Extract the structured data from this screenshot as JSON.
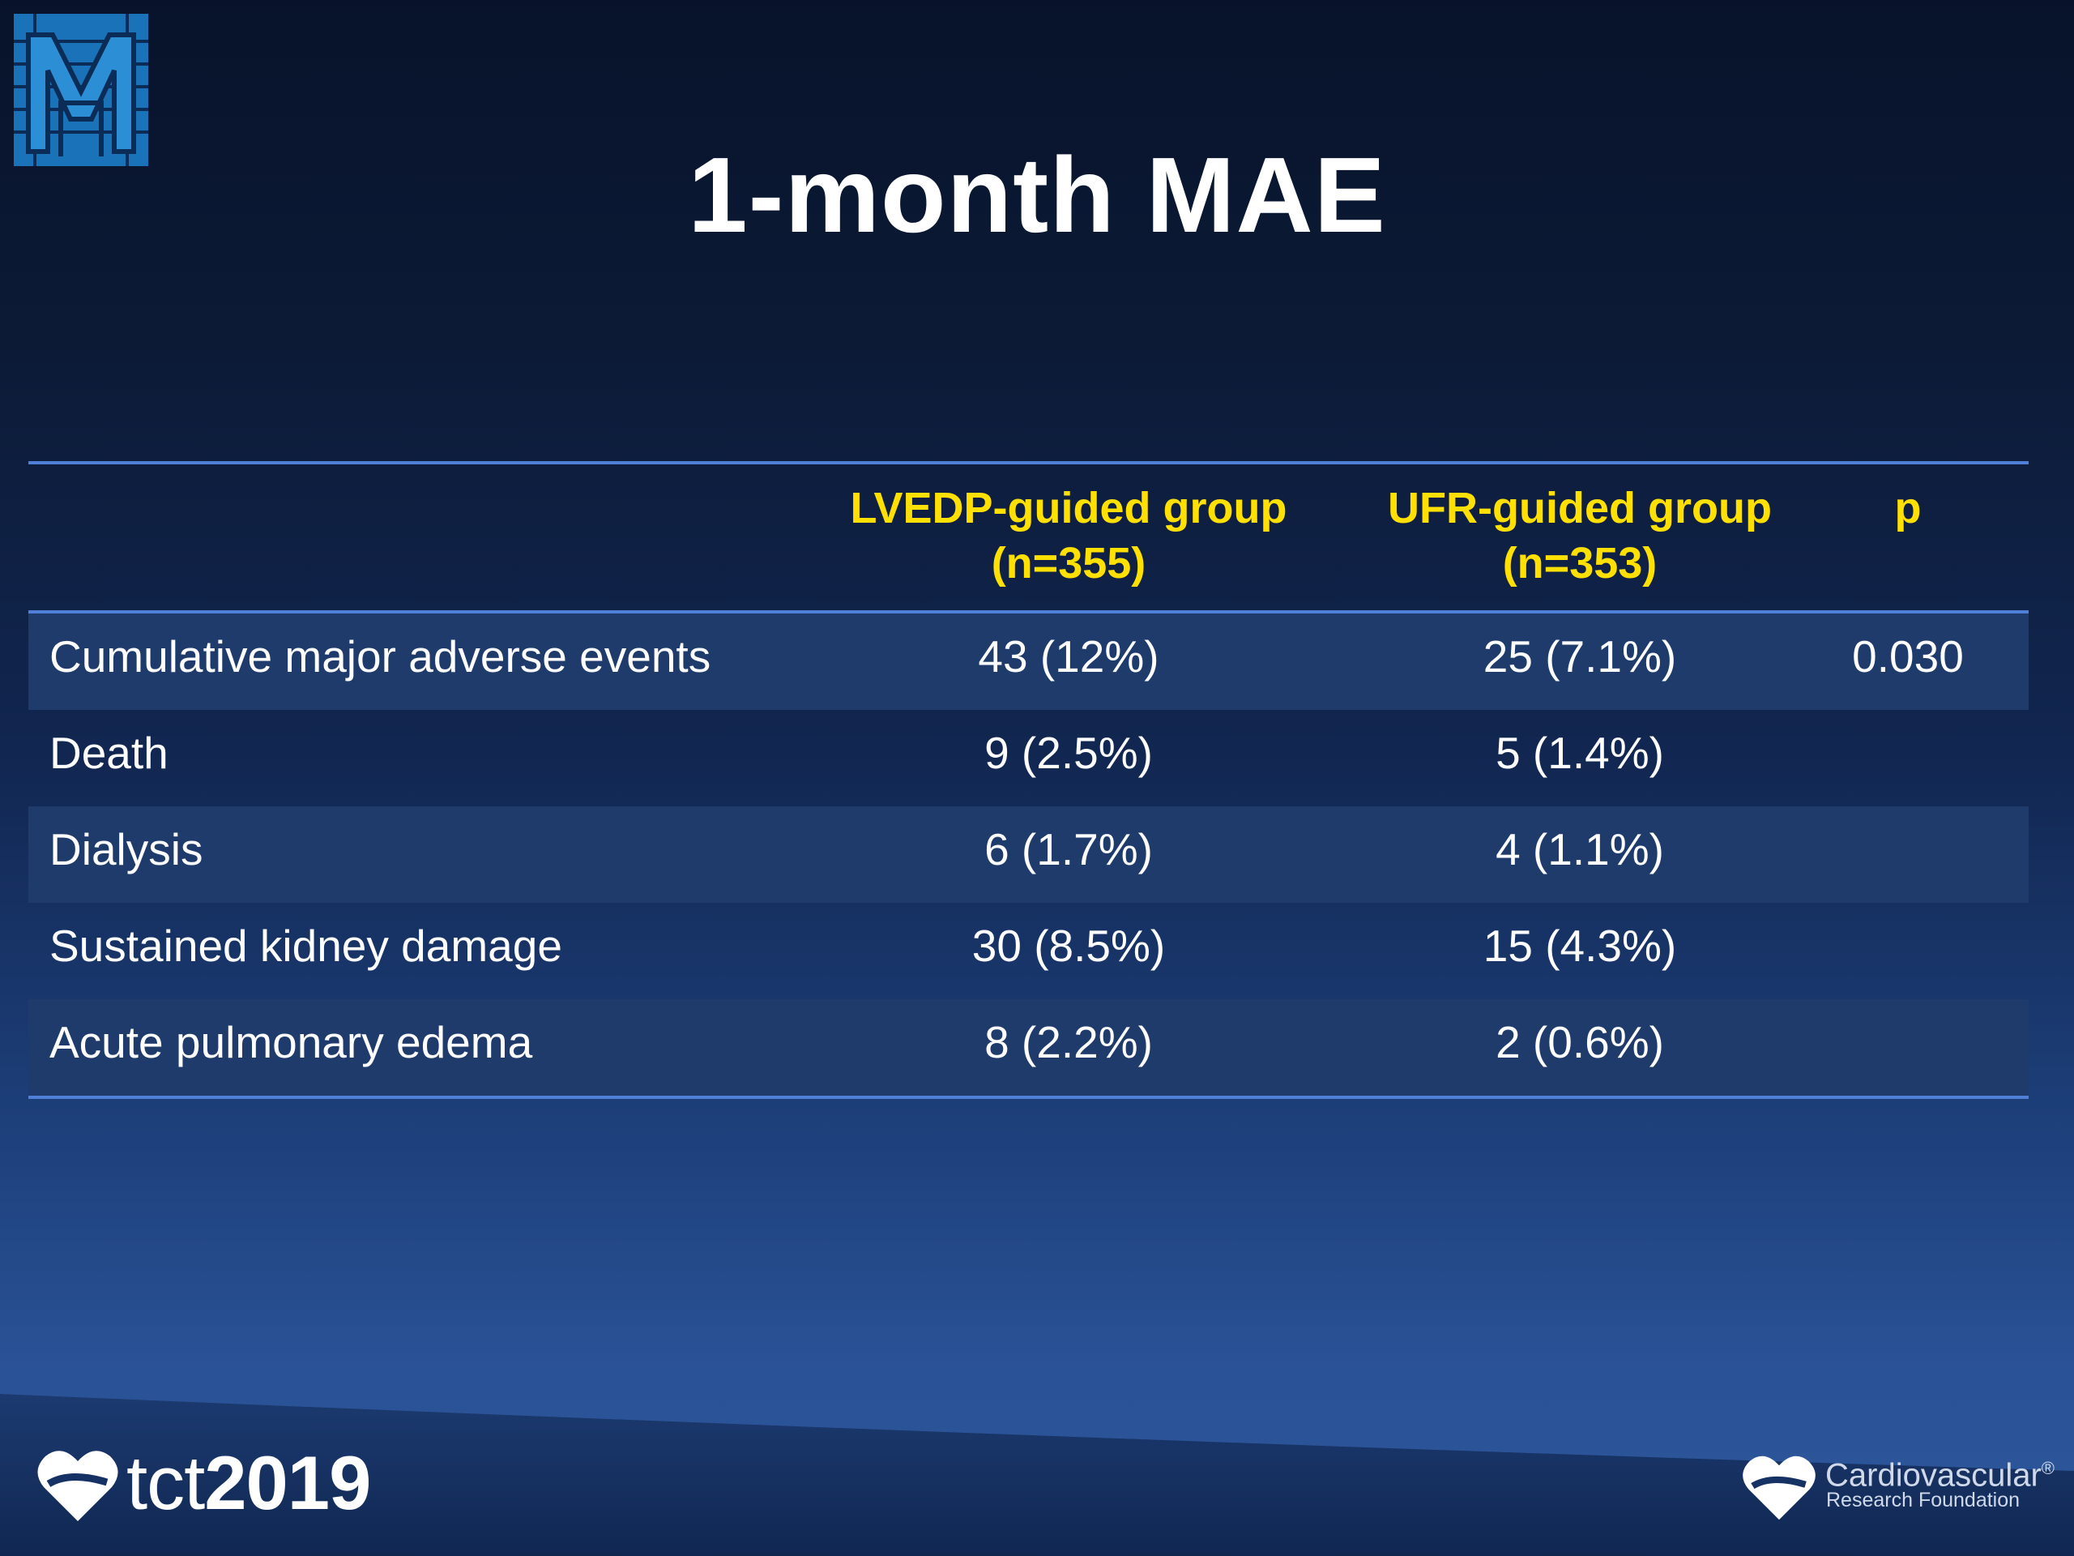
{
  "title": "1-month MAE",
  "table": {
    "headers": {
      "col1_line1": "LVEDP-guided group",
      "col1_line2": "(n=355)",
      "col2_line1": "UFR-guided group",
      "col2_line2": "(n=353)",
      "col3": "p"
    },
    "rows": [
      {
        "label": "Cumulative major adverse events",
        "lvedp": "43 (12%)",
        "ufr": "25 (7.1%)",
        "p": "0.030"
      },
      {
        "label": "Death",
        "lvedp": "9 (2.5%)",
        "ufr": "5 (1.4%)",
        "p": ""
      },
      {
        "label": "Dialysis",
        "lvedp": "6 (1.7%)",
        "ufr": "4 (1.1%)",
        "p": ""
      },
      {
        "label": "Sustained kidney damage",
        "lvedp": "30 (8.5%)",
        "ufr": "15 (4.3%)",
        "p": ""
      },
      {
        "label": "Acute pulmonary edema",
        "lvedp": "8 (2.2%)",
        "ufr": "2 (0.6%)",
        "p": ""
      }
    ]
  },
  "footer": {
    "tct_prefix": "tct",
    "tct_year": "2019",
    "crf_name": "Cardiovascular",
    "crf_reg": "®",
    "crf_sub": "Research Foundation"
  },
  "colors": {
    "header_text": "#ffe000",
    "rule": "#4f7fd6",
    "row_shade": "#1f3b6c"
  }
}
